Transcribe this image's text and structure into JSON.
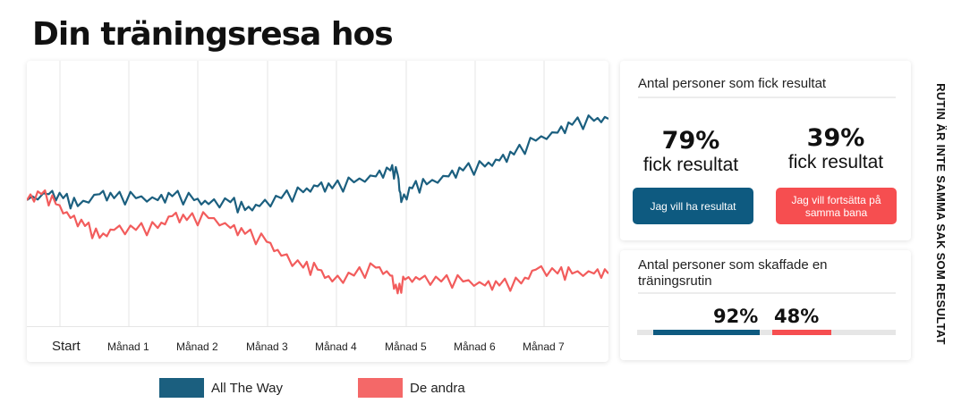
{
  "title": "Din träningsresa hos",
  "colors": {
    "allTheWay": "#1b5f7f",
    "deAndra": "#f25c5c",
    "buttonBlue": "#0e5a80",
    "buttonRed": "#f64e50"
  },
  "chart_data": {
    "type": "line",
    "title": "Din träningsresa hos",
    "xlabel": "",
    "ylabel": "",
    "categories": [
      "Start",
      "Månad 1",
      "Månad 2",
      "Månad 3",
      "Månad 4",
      "Månad 5",
      "Månad 6",
      "Månad 7"
    ],
    "xlim": [
      0,
      8
    ],
    "ylim": [
      0,
      100
    ],
    "grid": true,
    "legend_position": "bottom",
    "series": [
      {
        "name": "All The Way",
        "color": "#1b5f7f",
        "x": [
          0,
          0.3,
          0.5,
          0.7,
          1.0,
          1.2,
          1.5,
          1.8,
          2.0,
          2.3,
          2.5,
          2.8,
          3.0,
          3.2,
          3.5,
          3.8,
          4.0,
          4.2,
          4.5,
          4.8,
          5.0,
          5.1,
          5.15,
          5.3,
          5.5,
          5.8,
          6.0,
          6.3,
          6.5,
          6.7,
          7.0,
          7.3,
          7.5,
          7.8,
          8.0
        ],
        "values": [
          50,
          53,
          51,
          47,
          53,
          51,
          51,
          50,
          52,
          50,
          48,
          49,
          45,
          47,
          51,
          54,
          57,
          56,
          59,
          62,
          65,
          63,
          49,
          56,
          58,
          62,
          65,
          67,
          70,
          73,
          80,
          84,
          88,
          90,
          91
        ]
      },
      {
        "name": "De andra",
        "color": "#f25c5c",
        "x": [
          0,
          0.2,
          0.4,
          0.6,
          0.8,
          1.0,
          1.2,
          1.5,
          1.8,
          2.0,
          2.2,
          2.5,
          2.8,
          3.0,
          3.3,
          3.5,
          3.8,
          4.0,
          4.2,
          4.5,
          4.8,
          5.0,
          5.1,
          5.2,
          5.4,
          5.7,
          6.0,
          6.3,
          6.5,
          6.8,
          7.0,
          7.3,
          7.5,
          7.8,
          8.0
        ],
        "values": [
          50,
          53,
          48,
          41,
          37,
          31,
          35,
          35,
          36,
          42,
          40,
          41,
          36,
          33,
          29,
          22,
          16,
          15,
          9,
          12,
          16,
          12,
          3,
          10,
          10,
          9,
          9,
          7,
          7,
          8,
          15,
          13,
          13,
          13,
          13
        ]
      }
    ]
  },
  "legend": [
    {
      "label": "All The Way",
      "color": "#1b5f7f"
    },
    {
      "label": "De andra",
      "color": "#f25c5c"
    }
  ],
  "results": {
    "heading": "Antal personer som fick resultat",
    "stat1": {
      "pct": "79%",
      "sub": "fick resultat"
    },
    "stat2": {
      "pct": "39%",
      "sub": "fick resultat"
    },
    "button1": "Jag vill ha resultat",
    "button2": "Jag vill fortsätta på samma bana"
  },
  "routine": {
    "heading": "Antal personer som skaffade en träningsrutin",
    "pct1": "92%",
    "pct2": "48%",
    "value1": 92,
    "value2": 48
  },
  "side_text": "RUTIN ÄR INTE SAMMA SAK SOM RESULTAT"
}
